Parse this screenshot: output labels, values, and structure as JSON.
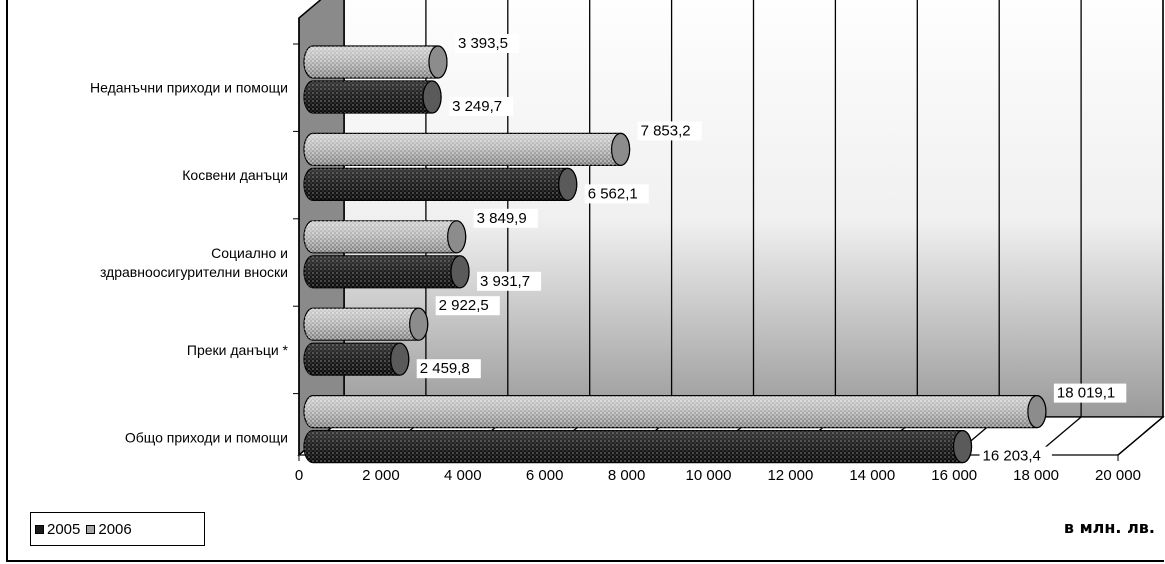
{
  "chart_data": {
    "type": "bar",
    "orientation": "horizontal",
    "style": "3d-cylinder",
    "categories": [
      "Неданъчни приходи и помощи",
      "Косвени данъци",
      "Социално и здравноосигурителни вноски",
      "Преки данъци *",
      "Общо приходи и помощи"
    ],
    "category_lines": [
      [
        "Неданъчни приходи и помощи"
      ],
      [
        "Косвени данъци"
      ],
      [
        "Социално и",
        "здравноосигурителни вноски"
      ],
      [
        "Преки данъци *"
      ],
      [
        "Общо приходи и помощи"
      ]
    ],
    "series": [
      {
        "name": "2005",
        "color": "#1a1a1a",
        "values": [
          3249.7,
          6562.1,
          3931.7,
          2459.8,
          16203.4
        ],
        "labels": [
          "3 249,7",
          "6 562,1",
          "3 931,7",
          "2 459,8",
          "16 203,4"
        ]
      },
      {
        "name": "2006",
        "color": "#a6a6a6",
        "values": [
          3393.5,
          7853.2,
          3849.9,
          2922.5,
          18019.1
        ],
        "labels": [
          "3 393,5",
          "7 853,2",
          "3 849,9",
          "2 922,5",
          "18 019,1"
        ]
      }
    ],
    "xlim": [
      0,
      20000
    ],
    "xticks": [
      0,
      2000,
      4000,
      6000,
      8000,
      10000,
      12000,
      14000,
      16000,
      18000,
      20000
    ],
    "xtick_labels": [
      "0",
      "2 000",
      "4 000",
      "6 000",
      "8 000",
      "10 000",
      "12 000",
      "14 000",
      "16 000",
      "18 000",
      "20 000"
    ],
    "grid": true,
    "legend_position": "bottom-left",
    "unit_label": "в млн. лв."
  }
}
